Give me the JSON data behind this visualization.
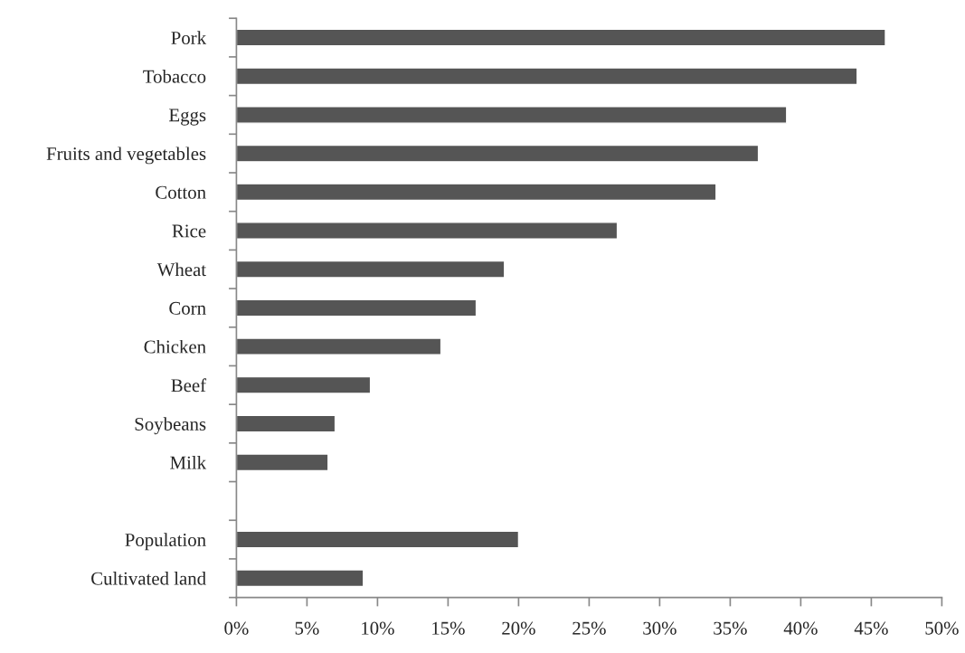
{
  "chart_data": {
    "type": "bar",
    "orientation": "horizontal",
    "categories": [
      "Pork",
      "Tobacco",
      "Eggs",
      "Fruits and vegetables",
      "Cotton",
      "Rice",
      "Wheat",
      "Corn",
      "Chicken",
      "Beef",
      "Soybeans",
      "Milk",
      null,
      "Population",
      "Cultivated land"
    ],
    "values": [
      46,
      44,
      39,
      37,
      34,
      27,
      19,
      17,
      14.5,
      9.5,
      7,
      6.5,
      null,
      20,
      9
    ],
    "color": "#555555",
    "xlim": [
      0,
      50
    ],
    "xticks": [
      {
        "value": 0,
        "label": "0%"
      },
      {
        "value": 5,
        "label": "5%"
      },
      {
        "value": 10,
        "label": "10%"
      },
      {
        "value": 15,
        "label": "15%"
      },
      {
        "value": 20,
        "label": "20%"
      },
      {
        "value": 25,
        "label": "25%"
      },
      {
        "value": 30,
        "label": "30%"
      },
      {
        "value": 35,
        "label": "35%"
      },
      {
        "value": 40,
        "label": "40%"
      },
      {
        "value": 45,
        "label": "45%"
      },
      {
        "value": 50,
        "label": "50%"
      }
    ],
    "grid": false,
    "legend": false
  }
}
